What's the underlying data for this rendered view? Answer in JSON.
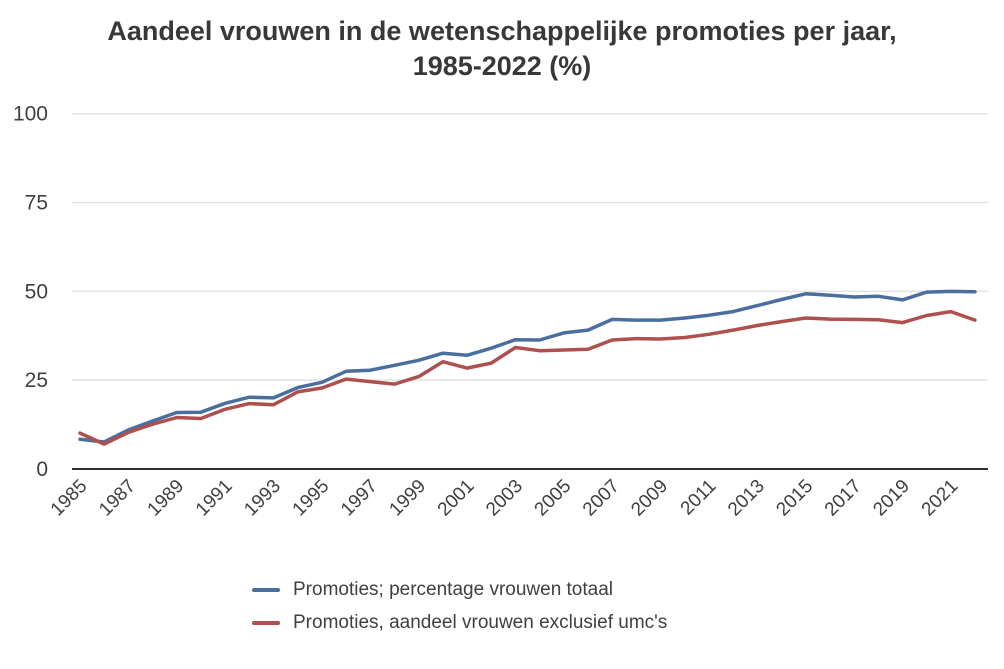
{
  "chart_data": {
    "type": "line",
    "title": "Aandeel vrouwen in de wetenschappelijke promoties per jaar, 1985-2022 (%)",
    "xlabel": "",
    "ylabel": "",
    "x": [
      1985,
      1986,
      1987,
      1988,
      1989,
      1990,
      1991,
      1992,
      1993,
      1994,
      1995,
      1996,
      1997,
      1998,
      1999,
      2000,
      2001,
      2002,
      2003,
      2004,
      2005,
      2006,
      2007,
      2008,
      2009,
      2010,
      2011,
      2012,
      2013,
      2014,
      2015,
      2016,
      2017,
      2018,
      2019,
      2020,
      2021,
      2022
    ],
    "series": [
      {
        "name": "Promoties; percentage vrouwen totaal",
        "color": "#4a6f9f",
        "values": [
          8.4,
          7.6,
          11.0,
          13.5,
          15.9,
          16.0,
          18.5,
          20.2,
          20.0,
          22.9,
          24.4,
          27.5,
          27.8,
          29.2,
          30.6,
          32.6,
          32.0,
          34.0,
          36.4,
          36.3,
          38.3,
          39.1,
          42.1,
          41.9,
          41.9,
          42.5,
          43.3,
          44.3,
          46.0,
          47.7,
          49.3,
          48.9,
          48.4,
          48.6,
          47.6,
          49.8,
          50.0,
          49.9
        ]
      },
      {
        "name": "Promoties, aandeel vrouwen exclusief umc's",
        "color": "#ad504e",
        "values": [
          10.1,
          7.0,
          10.3,
          12.6,
          14.5,
          14.2,
          16.8,
          18.4,
          18.1,
          21.7,
          22.8,
          25.3,
          24.6,
          23.9,
          26.0,
          30.2,
          28.4,
          29.8,
          34.2,
          33.3,
          33.5,
          33.7,
          36.3,
          36.7,
          36.6,
          37.0,
          37.9,
          39.1,
          40.4,
          41.5,
          42.5,
          42.2,
          42.1,
          42.0,
          41.2,
          43.2,
          44.3,
          41.9
        ]
      }
    ],
    "ylim": [
      0,
      100
    ],
    "yticks": [
      0,
      25,
      50,
      75,
      100
    ],
    "xtick_labels": [
      "1985",
      "1987",
      "1989",
      "1991",
      "1993",
      "1995",
      "1997",
      "1999",
      "2001",
      "2003",
      "2005",
      "2007",
      "2009",
      "2011",
      "2013",
      "2015",
      "2017",
      "2019",
      "2021"
    ],
    "grid": true,
    "legend_position": "bottom"
  },
  "colors": {
    "gridline": "#e3e3e3",
    "axis_line": "#2e2e2e",
    "tick_text": "#404040",
    "title_text": "#383838",
    "background": "#ffffff"
  }
}
